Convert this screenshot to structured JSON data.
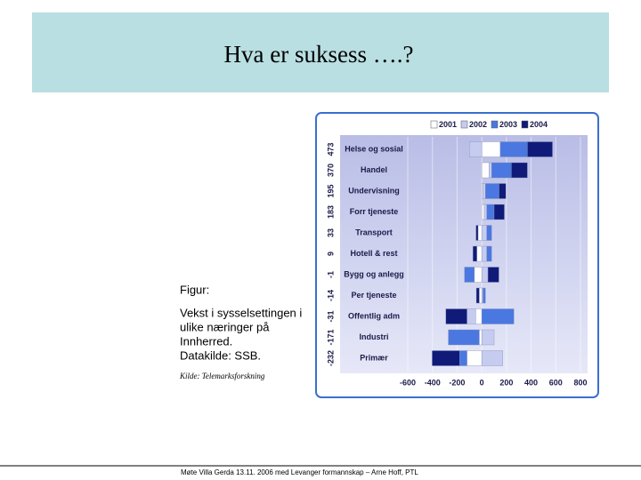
{
  "slide": {
    "title": "Hva er suksess ….?",
    "caption": [
      "Figur:",
      "Vekst i sysselsettingen i",
      "ulike næringer på",
      "Innherred.",
      "Datakilde: SSB."
    ],
    "source": "Kilde: Telemarksforskning",
    "footer": "Møte Villa Gerda 13.11. 2006 med Levanger formannskap – Arne Hoff, PTL"
  },
  "chart_data": {
    "type": "stacked-barh",
    "categories": [
      "Helse og sosial",
      "Handel",
      "Undervisning",
      "Forr tjeneste",
      "Transport",
      "Hotell & rest",
      "Bygg og anlegg",
      "Per tjeneste",
      "Offentlig adm",
      "Industri",
      "Primær"
    ],
    "totals": [
      473,
      370,
      195,
      183,
      33,
      9,
      -1,
      -14,
      -31,
      -171,
      -232
    ],
    "series": [
      {
        "name": "2001",
        "color": "#ffffff",
        "values": [
          150,
          60,
          10,
          20,
          -30,
          -40,
          -60,
          -20,
          -50,
          -20,
          -120
        ]
      },
      {
        "name": "2002",
        "color": "#c6cbf0",
        "values": [
          -100,
          20,
          20,
          20,
          40,
          40,
          50,
          10,
          -70,
          100,
          170
        ]
      },
      {
        "name": "2003",
        "color": "#4a78e0",
        "values": [
          220,
          160,
          110,
          60,
          40,
          40,
          -80,
          20,
          260,
          -250,
          -60
        ]
      },
      {
        "name": "2004",
        "color": "#101a78",
        "values": [
          203,
          130,
          55,
          83,
          -17,
          -31,
          89,
          -24,
          -171,
          -1,
          -222
        ]
      }
    ],
    "xlim": [
      -600,
      800
    ],
    "xticks": [
      -600,
      -400,
      -200,
      0,
      200,
      400,
      600,
      800
    ],
    "grid": true
  }
}
